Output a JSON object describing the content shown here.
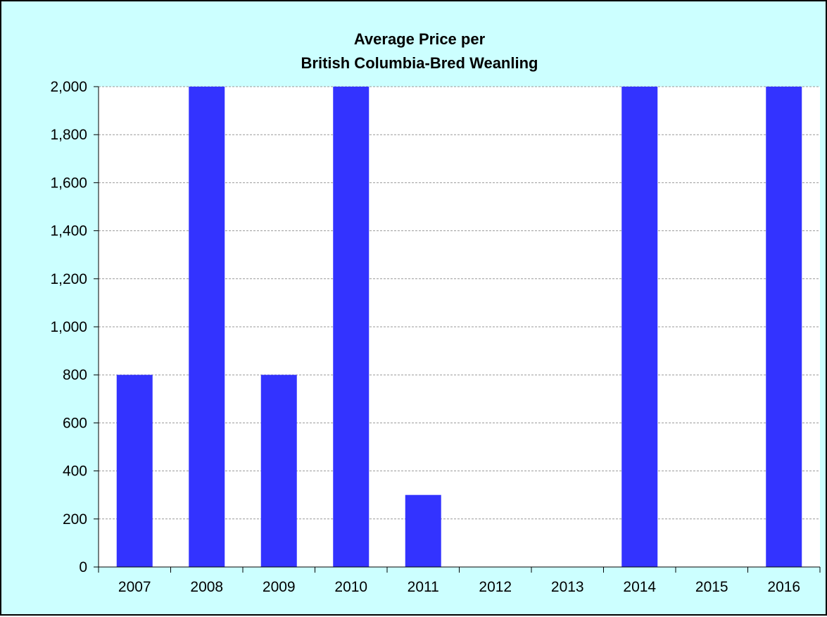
{
  "chart_data": {
    "type": "bar",
    "title_line1": "Average Price per",
    "title_line2": "British Columbia-Bred Weanling",
    "xlabel": "",
    "ylabel": "",
    "categories": [
      "2007",
      "2008",
      "2009",
      "2010",
      "2011",
      "2012",
      "2013",
      "2014",
      "2015",
      "2016"
    ],
    "values": [
      800,
      2000,
      800,
      2000,
      300,
      0,
      0,
      2000,
      0,
      2000
    ],
    "ylim": [
      0,
      2000
    ],
    "yticks": [
      0,
      200,
      400,
      600,
      800,
      1000,
      1200,
      1400,
      1600,
      1800,
      2000
    ],
    "ytick_labels": [
      "0",
      "200",
      "400",
      "600",
      "800",
      "1,000",
      "1,200",
      "1,400",
      "1,600",
      "1,800",
      "2,000"
    ],
    "grid": true,
    "legend": "none",
    "colors": {
      "bar": "#3333ff",
      "background": "#ccffff",
      "plot_area": "#ffffff",
      "gridline": "#999999"
    }
  }
}
